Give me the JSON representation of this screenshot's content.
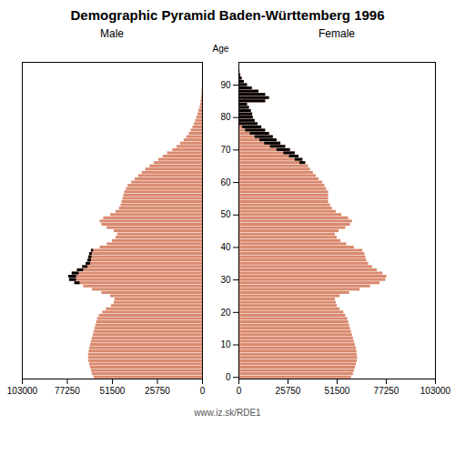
{
  "chart_data": {
    "type": "bar",
    "orientation": "horizontal",
    "title": "Demographic Pyramid Baden-Württemberg 1996",
    "ylabel": "Age",
    "caption": "www.iz.sk/RDE1",
    "categories": [
      0,
      1,
      2,
      3,
      4,
      5,
      6,
      7,
      8,
      9,
      10,
      11,
      12,
      13,
      14,
      15,
      16,
      17,
      18,
      19,
      20,
      21,
      22,
      23,
      24,
      25,
      26,
      27,
      28,
      29,
      30,
      31,
      32,
      33,
      34,
      35,
      36,
      37,
      38,
      39,
      40,
      41,
      42,
      43,
      44,
      45,
      46,
      47,
      48,
      49,
      50,
      51,
      52,
      53,
      54,
      55,
      56,
      57,
      58,
      59,
      60,
      61,
      62,
      63,
      64,
      65,
      66,
      67,
      68,
      69,
      70,
      71,
      72,
      73,
      74,
      75,
      76,
      77,
      78,
      79,
      80,
      81,
      82,
      83,
      84,
      85,
      86,
      87,
      88,
      89,
      90,
      91,
      92,
      93,
      94,
      95
    ],
    "xlim": [
      0,
      103000
    ],
    "xticks": [
      0,
      25750,
      51500,
      77250,
      103000
    ],
    "ylim": [
      -0.5,
      97
    ],
    "yticks": [
      0,
      10,
      20,
      30,
      40,
      50,
      60,
      70,
      80,
      90
    ],
    "series": [
      {
        "name": "Male",
        "color": "#d9896e",
        "tip_color": "#000000",
        "values": [
          62000,
          63000,
          63500,
          64000,
          64500,
          65000,
          65200,
          65000,
          64800,
          64500,
          64000,
          63500,
          63000,
          62500,
          62000,
          61500,
          61000,
          60500,
          60000,
          59000,
          57000,
          55000,
          52000,
          50500,
          50000,
          52500,
          57500,
          63000,
          68000,
          73000,
          76000,
          76500,
          74500,
          71500,
          68500,
          66500,
          65500,
          65000,
          64500,
          63500,
          58500,
          54500,
          51500,
          49500,
          48500,
          50500,
          54500,
          57500,
          58500,
          56500,
          52500,
          49500,
          47500,
          46500,
          46000,
          45500,
          45000,
          44500,
          43500,
          42500,
          40500,
          38500,
          36500,
          34500,
          32500,
          30000,
          27500,
          25000,
          22500,
          20000,
          17000,
          14500,
          12500,
          10500,
          9000,
          7500,
          6500,
          5500,
          4700,
          3900,
          3200,
          2600,
          2000,
          1500,
          1100,
          800,
          600,
          400,
          280,
          180,
          110,
          70,
          40,
          25,
          12,
          6
        ],
        "tip_values": [
          null,
          null,
          null,
          null,
          null,
          null,
          null,
          null,
          null,
          null,
          null,
          null,
          null,
          null,
          null,
          null,
          null,
          null,
          null,
          null,
          null,
          null,
          null,
          null,
          null,
          null,
          null,
          null,
          null,
          3000,
          4000,
          4500,
          4000,
          3500,
          3000,
          2500,
          2000,
          1800,
          1500,
          1200,
          null,
          null,
          null,
          null,
          null,
          null,
          null,
          null,
          null,
          null,
          null,
          null,
          null,
          null,
          null,
          null,
          null,
          null,
          null,
          null,
          null,
          null,
          null,
          null,
          null,
          null,
          null,
          null,
          null,
          null,
          null,
          null,
          null,
          null,
          null,
          null,
          null,
          null,
          null,
          null,
          null,
          null,
          null,
          null,
          null,
          null,
          null,
          null,
          null,
          null,
          null,
          null,
          null,
          null,
          null,
          null
        ]
      },
      {
        "name": "Female",
        "color": "#d9896e",
        "tip_color": "#000000",
        "values": [
          59000,
          60000,
          60500,
          61000,
          61500,
          62000,
          62200,
          62000,
          61800,
          61500,
          61000,
          60500,
          60000,
          59500,
          59000,
          58500,
          58000,
          57500,
          57000,
          56000,
          55000,
          53000,
          51500,
          51000,
          50500,
          53000,
          58000,
          63500,
          69000,
          74000,
          77000,
          77500,
          75500,
          72500,
          70000,
          68000,
          67000,
          66500,
          66000,
          65000,
          60500,
          56500,
          53500,
          51500,
          50500,
          52500,
          56000,
          58500,
          59500,
          57500,
          54000,
          51000,
          49000,
          48000,
          47000,
          47000,
          47000,
          47000,
          46000,
          45000,
          44000,
          42000,
          40500,
          39000,
          37500,
          36500,
          35000,
          33500,
          31500,
          29500,
          27000,
          24500,
          22000,
          20000,
          18000,
          16000,
          14000,
          12000,
          10000,
          8500,
          7500,
          7200,
          6500,
          5500,
          4500,
          14000,
          16000,
          14000,
          10500,
          7000,
          4500,
          2800,
          1700,
          1000,
          550,
          250
        ],
        "tip_values": [
          null,
          null,
          null,
          null,
          null,
          null,
          null,
          null,
          null,
          null,
          null,
          null,
          null,
          null,
          null,
          null,
          null,
          null,
          null,
          null,
          null,
          null,
          null,
          null,
          null,
          null,
          null,
          null,
          null,
          null,
          null,
          null,
          null,
          null,
          null,
          null,
          null,
          null,
          null,
          null,
          null,
          null,
          null,
          null,
          null,
          null,
          null,
          null,
          null,
          null,
          null,
          null,
          null,
          null,
          null,
          null,
          null,
          null,
          null,
          null,
          null,
          null,
          null,
          null,
          null,
          null,
          3000,
          4000,
          5000,
          6000,
          7000,
          8000,
          8500,
          9000,
          9500,
          10000,
          10500,
          10000,
          9500,
          9000,
          8000,
          7000,
          6000,
          5000,
          4500,
          14000,
          16000,
          14000,
          10500,
          7000,
          4500,
          2800,
          1700,
          1000,
          550,
          250
        ]
      }
    ]
  }
}
